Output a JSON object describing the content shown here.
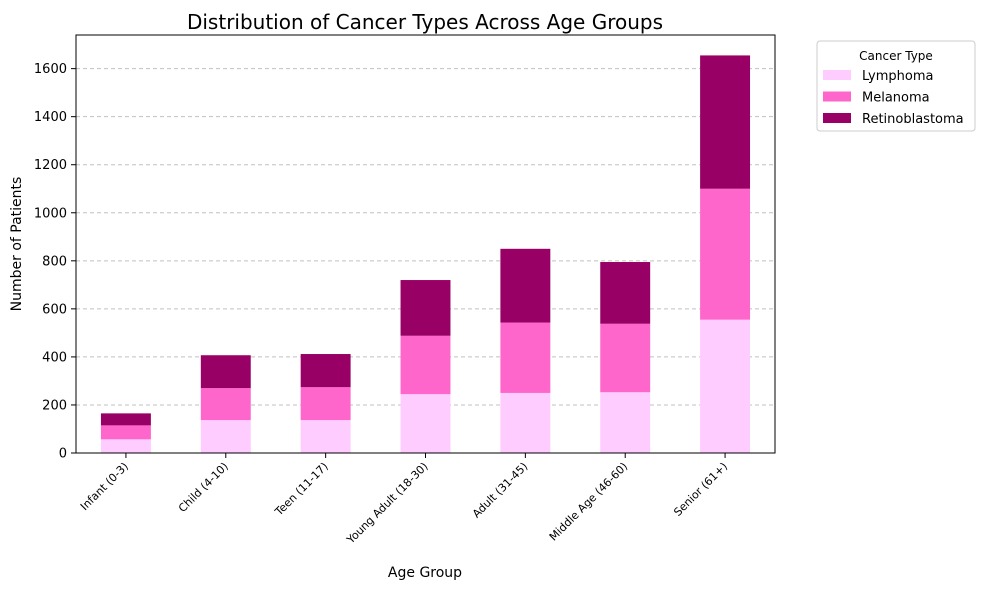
{
  "chart_data": {
    "type": "bar",
    "stacked": true,
    "title": "Distribution of Cancer Types Across Age Groups",
    "xlabel": "Age Group",
    "ylabel": "Number of Patients",
    "ylim": [
      0,
      1740
    ],
    "yticks": [
      0,
      200,
      400,
      600,
      800,
      1000,
      1200,
      1400,
      1600
    ],
    "grid": "horizontal dashed",
    "legend": {
      "title": "Cancer Type",
      "placement": "outside-top-right"
    },
    "categories": [
      "Infant (0-3)",
      "Child (4-10)",
      "Teen (11-17)",
      "Young Adult (18-30)",
      "Adult (31-45)",
      "Middle Age (46-60)",
      "Senior (61+)"
    ],
    "series": [
      {
        "name": "Lymphoma",
        "color": "#ffccff",
        "values": [
          57,
          137,
          137,
          245,
          250,
          253,
          555
        ]
      },
      {
        "name": "Melanoma",
        "color": "#ff66cc",
        "values": [
          58,
          133,
          137,
          243,
          293,
          285,
          545
        ]
      },
      {
        "name": "Retinoblastoma",
        "color": "#990066",
        "values": [
          50,
          137,
          138,
          232,
          307,
          257,
          555
        ]
      }
    ]
  }
}
